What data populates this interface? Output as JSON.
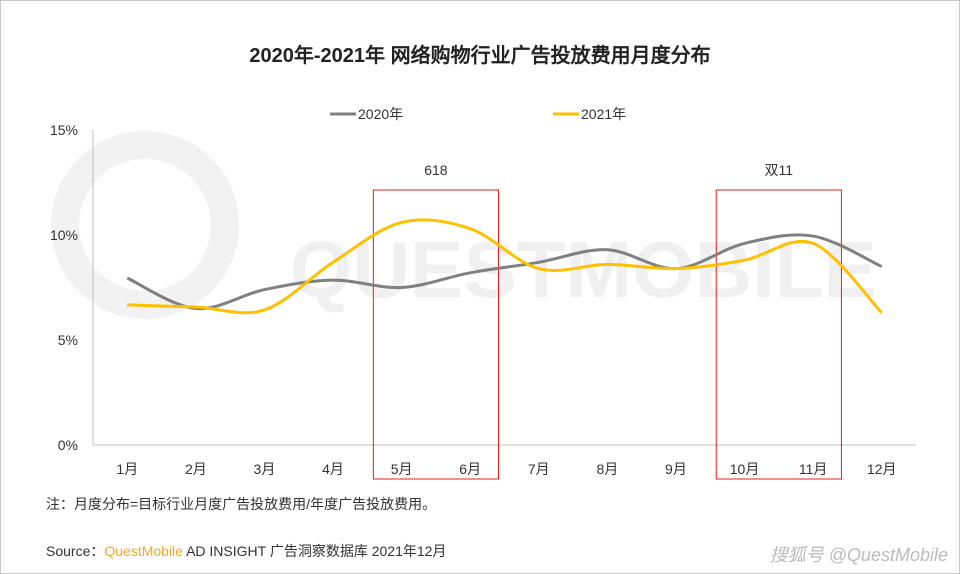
{
  "chart_data": {
    "type": "line",
    "title": "2020年-2021年 网络购物行业广告投放费用月度分布",
    "categories": [
      "1月",
      "2月",
      "3月",
      "4月",
      "5月",
      "6月",
      "7月",
      "8月",
      "9月",
      "10月",
      "11月",
      "12月"
    ],
    "y_ticks": [
      "0%",
      "5%",
      "10%",
      "15%"
    ],
    "ylim": [
      0,
      15
    ],
    "grid": false,
    "legend_position": "top",
    "series": [
      {
        "name": "2020年",
        "color": "#808080",
        "values": [
          7.95,
          6.5,
          7.4,
          7.85,
          7.5,
          8.2,
          8.7,
          9.3,
          8.4,
          9.6,
          9.95,
          8.5
        ]
      },
      {
        "name": "2021年",
        "color": "#ffc000",
        "values": [
          6.67,
          6.57,
          6.43,
          8.7,
          10.6,
          10.3,
          8.4,
          8.6,
          8.4,
          8.8,
          9.6,
          6.3
        ]
      }
    ],
    "annotations": [
      {
        "label": "618",
        "months": [
          "5月",
          "6月"
        ],
        "color": "#e02020"
      },
      {
        "label": "双11",
        "months": [
          "10月",
          "11月"
        ],
        "color": "#e02020"
      }
    ]
  },
  "note": "注：月度分布=目标行业月度广告投放费用/年度广告投放费用。",
  "source_prefix": "Source：",
  "source_brand": "QuestMobile",
  "source_rest": " AD INSIGHT 广告洞察数据库 2021年12月",
  "watermark": "搜狐号 @QuestMobile",
  "background_watermark": "QUESTMOBILE"
}
